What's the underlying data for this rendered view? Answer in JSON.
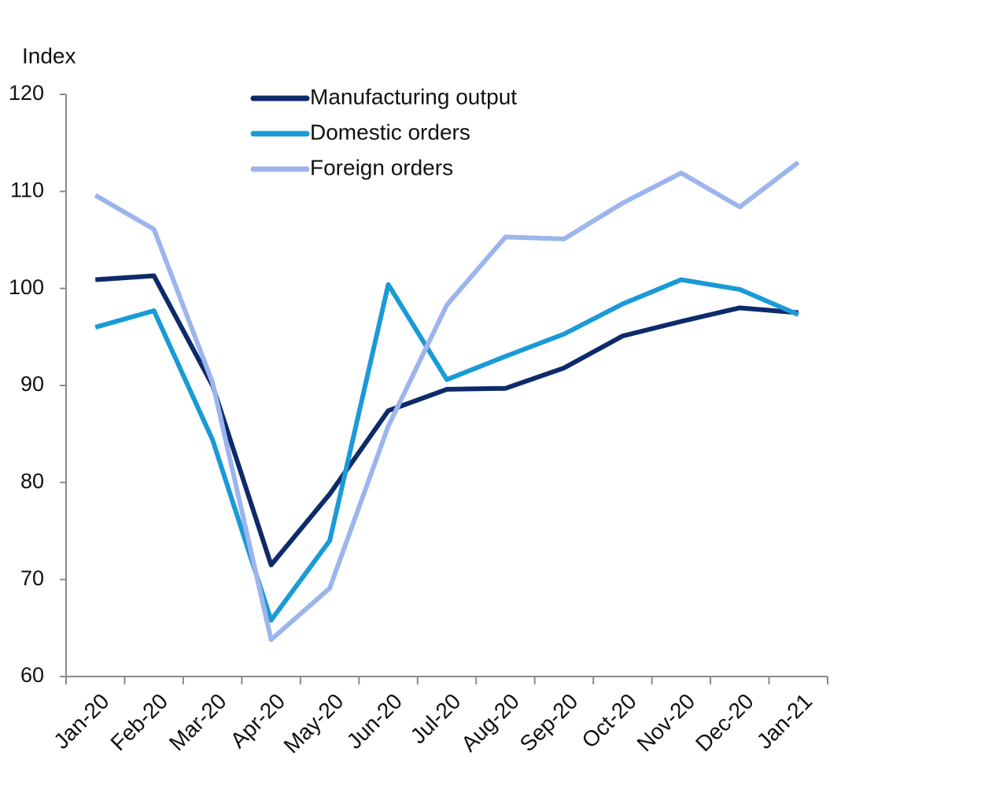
{
  "chart_data": {
    "type": "line",
    "y_label": "Index",
    "categories": [
      "Jan-20",
      "Feb-20",
      "Mar-20",
      "Apr-20",
      "May-20",
      "Jun-20",
      "Jul-20",
      "Aug-20",
      "Sep-20",
      "Oct-20",
      "Nov-20",
      "Dec-20",
      "Jan-21"
    ],
    "series": [
      {
        "name": "Manufacturing output",
        "color": "#0d2b6b",
        "values": [
          100.9,
          101.3,
          90.0,
          71.5,
          78.8,
          87.4,
          89.6,
          89.7,
          91.8,
          95.1,
          96.6,
          98.0,
          97.5
        ]
      },
      {
        "name": "Domestic orders",
        "color": "#1a9ad6",
        "values": [
          96.0,
          97.7,
          84.4,
          65.8,
          74.0,
          100.4,
          90.6,
          93.0,
          95.3,
          98.4,
          100.9,
          99.9,
          97.3
        ]
      },
      {
        "name": "Foreign orders",
        "color": "#9db5ec",
        "values": [
          109.6,
          106.1,
          90.3,
          63.8,
          69.1,
          85.8,
          98.3,
          105.3,
          105.1,
          108.8,
          111.9,
          108.4,
          113.0
        ]
      }
    ],
    "ylim": [
      60,
      120
    ],
    "yticks": [
      60,
      70,
      80,
      90,
      100,
      110,
      120
    ],
    "grid": false,
    "legend": "upper-center"
  }
}
